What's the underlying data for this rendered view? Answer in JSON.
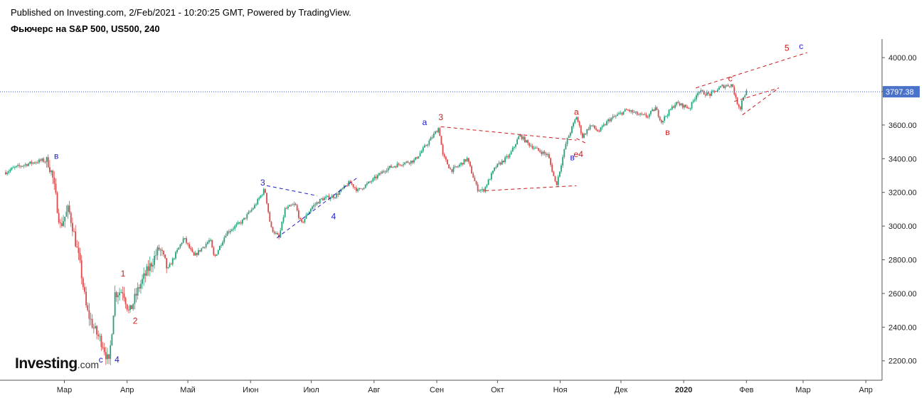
{
  "header": {
    "published": "Published on Investing.com, 2/Feb/2021 - 10:20:25 GMT, Powered by TradingView.",
    "title": "Фьючерс на S&P 500, US500, 240"
  },
  "logo": {
    "brand": "Investing",
    "domain": ".com"
  },
  "colors": {
    "up": "#26a17b",
    "down": "#d94b4b",
    "axis": "#555555",
    "price_line": "#3a5fcd",
    "wave_red": "#cc1a1a",
    "wave_blue": "#1a1acc"
  },
  "chart_data": {
    "type": "candlestick",
    "title": "Фьючерс на S&P 500, US500, 240",
    "x_start": "2020-02-01",
    "xlim": [
      "2020-02-01",
      "2021-04-09"
    ],
    "ylim": [
      2085,
      4110
    ],
    "y_ticks": [
      2200,
      2400,
      2600,
      2800,
      3000,
      3200,
      3400,
      3600,
      3800,
      4000
    ],
    "y_tick_labels": [
      "2200.00",
      "2400.00",
      "2600.00",
      "2800.00",
      "3000.00",
      "3200.00",
      "3400.00",
      "3600.00",
      "3800.00",
      "4000.00"
    ],
    "x_ticks": [
      {
        "label": "Мар",
        "date": "2020-03-01"
      },
      {
        "label": "Апр",
        "date": "2020-04-01"
      },
      {
        "label": "Май",
        "date": "2020-05-01"
      },
      {
        "label": "Июн",
        "date": "2020-06-01"
      },
      {
        "label": "Июл",
        "date": "2020-07-01"
      },
      {
        "label": "Авг",
        "date": "2020-08-01"
      },
      {
        "label": "Сен",
        "date": "2020-09-01"
      },
      {
        "label": "Окт",
        "date": "2020-10-01"
      },
      {
        "label": "Ноя",
        "date": "2020-11-01"
      },
      {
        "label": "Дек",
        "date": "2020-12-01"
      },
      {
        "label": "2020",
        "date": "2021-01-01",
        "bold": true
      },
      {
        "label": "Фев",
        "date": "2021-02-01"
      },
      {
        "label": "Мар",
        "date": "2021-03-01"
      },
      {
        "label": "Апр",
        "date": "2021-04-01"
      }
    ],
    "current_price": 3797.38,
    "current_price_label": "3797.38",
    "price_path": [
      [
        "2020-02-01",
        3320
      ],
      [
        "2020-02-05",
        3345
      ],
      [
        "2020-02-12",
        3370
      ],
      [
        "2020-02-19",
        3390
      ],
      [
        "2020-02-22",
        3380
      ],
      [
        "2020-02-24",
        3300
      ],
      [
        "2020-02-28",
        3000
      ],
      [
        "2020-03-01",
        3050
      ],
      [
        "2020-03-03",
        3100
      ],
      [
        "2020-03-05",
        3000
      ],
      [
        "2020-03-09",
        2750
      ],
      [
        "2020-03-12",
        2500
      ],
      [
        "2020-03-16",
        2380
      ],
      [
        "2020-03-20",
        2300
      ],
      [
        "2020-03-23",
        2180
      ],
      [
        "2020-03-26",
        2600
      ],
      [
        "2020-03-30",
        2620
      ],
      [
        "2020-04-02",
        2480
      ],
      [
        "2020-04-07",
        2640
      ],
      [
        "2020-04-13",
        2780
      ],
      [
        "2020-04-17",
        2870
      ],
      [
        "2020-04-21",
        2740
      ],
      [
        "2020-04-29",
        2930
      ],
      [
        "2020-05-04",
        2820
      ],
      [
        "2020-05-12",
        2920
      ],
      [
        "2020-05-14",
        2810
      ],
      [
        "2020-05-20",
        2960
      ],
      [
        "2020-05-28",
        3030
      ],
      [
        "2020-06-03",
        3120
      ],
      [
        "2020-06-08",
        3220
      ],
      [
        "2020-06-11",
        2990
      ],
      [
        "2020-06-15",
        2930
      ],
      [
        "2020-06-18",
        3100
      ],
      [
        "2020-06-23",
        3130
      ],
      [
        "2020-06-26",
        3010
      ],
      [
        "2020-07-01",
        3110
      ],
      [
        "2020-07-06",
        3160
      ],
      [
        "2020-07-13",
        3180
      ],
      [
        "2020-07-20",
        3260
      ],
      [
        "2020-07-24",
        3210
      ],
      [
        "2020-07-31",
        3270
      ],
      [
        "2020-08-07",
        3340
      ],
      [
        "2020-08-14",
        3370
      ],
      [
        "2020-08-21",
        3390
      ],
      [
        "2020-08-28",
        3500
      ],
      [
        "2020-09-02",
        3585
      ],
      [
        "2020-09-04",
        3420
      ],
      [
        "2020-09-08",
        3330
      ],
      [
        "2020-09-11",
        3350
      ],
      [
        "2020-09-16",
        3400
      ],
      [
        "2020-09-21",
        3220
      ],
      [
        "2020-09-24",
        3210
      ],
      [
        "2020-09-30",
        3350
      ],
      [
        "2020-10-07",
        3420
      ],
      [
        "2020-10-12",
        3540
      ],
      [
        "2020-10-16",
        3490
      ],
      [
        "2020-10-21",
        3450
      ],
      [
        "2020-10-26",
        3420
      ],
      [
        "2020-10-30",
        3240
      ],
      [
        "2020-11-04",
        3500
      ],
      [
        "2020-11-09",
        3650
      ],
      [
        "2020-11-12",
        3530
      ],
      [
        "2020-11-16",
        3600
      ],
      [
        "2020-11-20",
        3560
      ],
      [
        "2020-11-25",
        3630
      ],
      [
        "2020-12-04",
        3690
      ],
      [
        "2020-12-10",
        3660
      ],
      [
        "2020-12-14",
        3650
      ],
      [
        "2020-12-18",
        3700
      ],
      [
        "2020-12-21",
        3620
      ],
      [
        "2020-12-28",
        3730
      ],
      [
        "2021-01-04",
        3700
      ],
      [
        "2021-01-08",
        3800
      ],
      [
        "2021-01-14",
        3780
      ],
      [
        "2021-01-20",
        3830
      ],
      [
        "2021-01-25",
        3840
      ],
      [
        "2021-01-27",
        3740
      ],
      [
        "2021-01-29",
        3700
      ],
      [
        "2021-01-30",
        3760
      ],
      [
        "2021-02-01",
        3797
      ]
    ],
    "wave_labels": [
      {
        "text": "в",
        "date": "2020-02-26",
        "price": 3400,
        "color": "blue"
      },
      {
        "text": "c",
        "date": "2020-03-19",
        "price": 2190,
        "color": "blue"
      },
      {
        "text": "4",
        "date": "2020-03-27",
        "price": 2190,
        "color": "blue"
      },
      {
        "text": "1",
        "date": "2020-03-30",
        "price": 2700,
        "color": "red"
      },
      {
        "text": "2",
        "date": "2020-04-05",
        "price": 2420,
        "color": "red"
      },
      {
        "text": "3",
        "date": "2020-06-07",
        "price": 3240,
        "color": "blue"
      },
      {
        "text": "4",
        "date": "2020-07-12",
        "price": 3040,
        "color": "blue"
      },
      {
        "text": "a",
        "date": "2020-08-26",
        "price": 3600,
        "color": "blue"
      },
      {
        "text": "3",
        "date": "2020-09-03",
        "price": 3630,
        "color": "red"
      },
      {
        "text": "a",
        "date": "2020-11-09",
        "price": 3660,
        "color": "red"
      },
      {
        "text": "в",
        "date": "2020-11-07",
        "price": 3390,
        "color": "blue"
      },
      {
        "text": "e4",
        "date": "2020-11-10",
        "price": 3410,
        "color": "red"
      },
      {
        "text": "в",
        "date": "2020-12-24",
        "price": 3540,
        "color": "red"
      },
      {
        "text": "c",
        "date": "2021-01-24",
        "price": 3860,
        "color": "red"
      },
      {
        "text": "5",
        "date": "2021-02-21",
        "price": 4040,
        "color": "red"
      },
      {
        "text": "c",
        "date": "2021-02-28",
        "price": 4050,
        "color": "blue"
      }
    ],
    "trend_lines": [
      {
        "from": [
          "2020-06-09",
          3240
        ],
        "to": [
          "2020-07-04",
          3180
        ],
        "color": "blue"
      },
      {
        "from": [
          "2020-06-14",
          2930
        ],
        "to": [
          "2020-07-24",
          3290
        ],
        "color": "blue"
      },
      {
        "from": [
          "2020-09-03",
          3590
        ],
        "to": [
          "2020-11-09",
          3510
        ],
        "color": "red"
      },
      {
        "from": [
          "2020-09-25",
          3210
        ],
        "to": [
          "2020-11-09",
          3240
        ],
        "color": "red"
      },
      {
        "from": [
          "2020-11-09",
          3520
        ],
        "to": [
          "2020-11-14",
          3490
        ],
        "color": "red"
      },
      {
        "from": [
          "2021-01-07",
          3820
        ],
        "to": [
          "2021-03-03",
          4030
        ],
        "color": "red"
      },
      {
        "from": [
          "2021-01-26",
          3740
        ],
        "to": [
          "2021-02-17",
          3820
        ],
        "color": "red"
      },
      {
        "from": [
          "2021-01-30",
          3660
        ],
        "to": [
          "2021-02-17",
          3820
        ],
        "color": "red"
      }
    ]
  }
}
